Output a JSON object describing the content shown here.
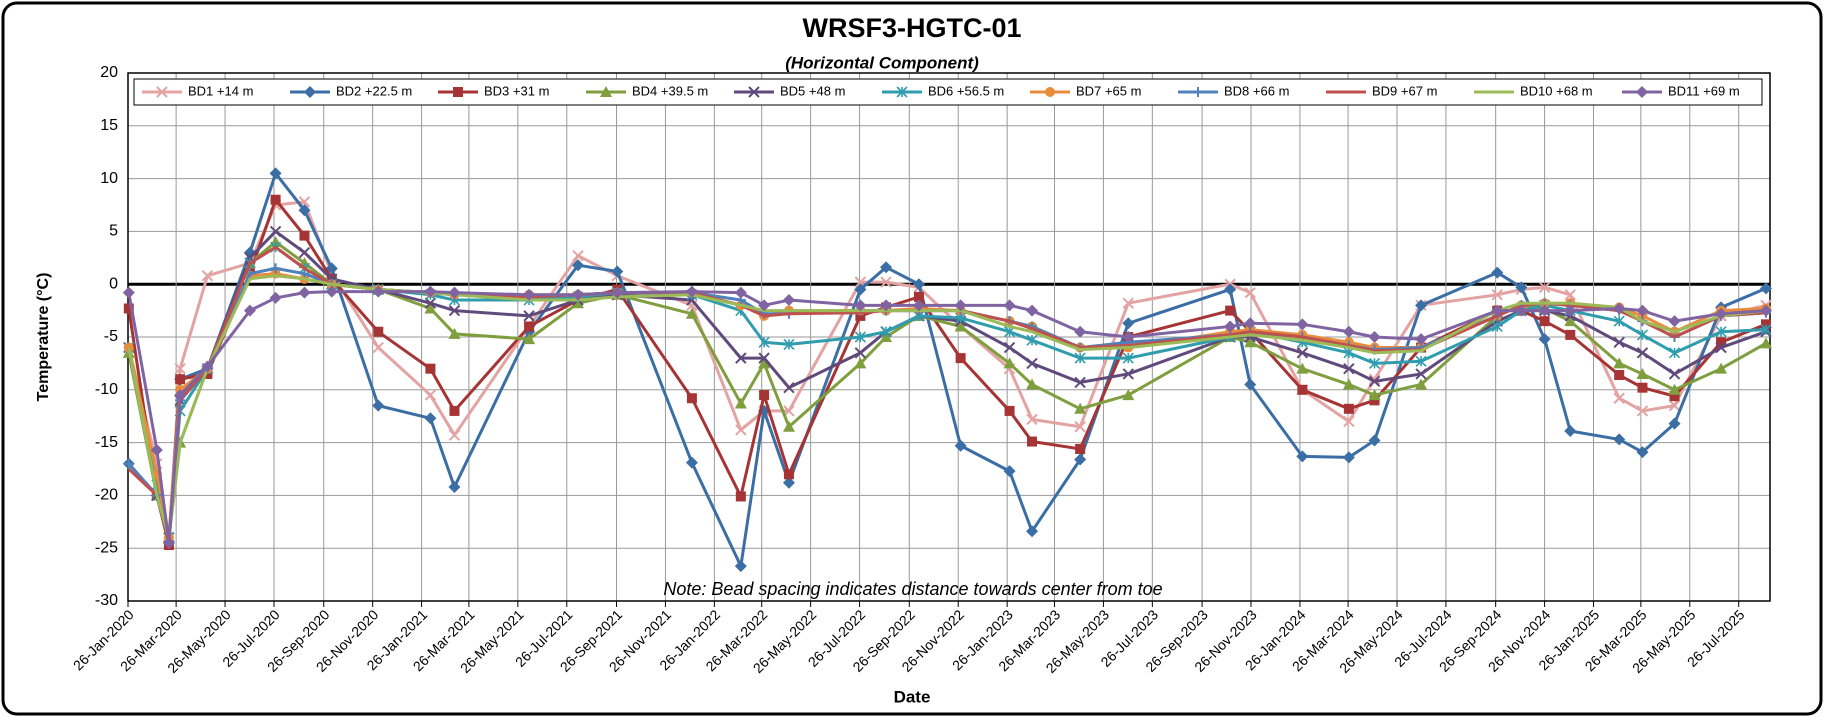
{
  "chart_data": {
    "type": "line",
    "title": "WRSF3-HGTC-01",
    "subtitle": "(Horizontal  Component)",
    "xlabel": "Date",
    "ylabel": "Temperature (°C)",
    "annotation": "Note: Bead spacing indicates distance towards center from toe",
    "xlim": [
      "2020-01-26",
      "2025-09-03"
    ],
    "xticks": [
      {
        "value": "2020-01-26",
        "label": "26-Jan-2020"
      },
      {
        "value": "2020-03-26",
        "label": "26-Mar-2020"
      },
      {
        "value": "2020-05-26",
        "label": "26-May-2020"
      },
      {
        "value": "2020-07-26",
        "label": "26-Jul-2020"
      },
      {
        "value": "2020-09-26",
        "label": "26-Sep-2020"
      },
      {
        "value": "2020-11-26",
        "label": "26-Nov-2020"
      },
      {
        "value": "2021-01-26",
        "label": "26-Jan-2021"
      },
      {
        "value": "2021-03-26",
        "label": "26-Mar-2021"
      },
      {
        "value": "2021-05-26",
        "label": "26-May-2021"
      },
      {
        "value": "2021-07-26",
        "label": "26-Jul-2021"
      },
      {
        "value": "2021-09-26",
        "label": "26-Sep-2021"
      },
      {
        "value": "2021-11-26",
        "label": "26-Nov-2021"
      },
      {
        "value": "2022-01-26",
        "label": "26-Jan-2022"
      },
      {
        "value": "2022-03-26",
        "label": "26-Mar-2022"
      },
      {
        "value": "2022-05-26",
        "label": "26-May-2022"
      },
      {
        "value": "2022-07-26",
        "label": "26-Jul-2022"
      },
      {
        "value": "2022-09-26",
        "label": "26-Sep-2022"
      },
      {
        "value": "2022-11-26",
        "label": "26-Nov-2022"
      },
      {
        "value": "2023-01-26",
        "label": "26-Jan-2023"
      },
      {
        "value": "2023-03-26",
        "label": "26-Mar-2023"
      },
      {
        "value": "2023-05-26",
        "label": "26-May-2023"
      },
      {
        "value": "2023-07-26",
        "label": "26-Jul-2023"
      },
      {
        "value": "2023-09-26",
        "label": "26-Sep-2023"
      },
      {
        "value": "2023-11-26",
        "label": "26-Nov-2023"
      },
      {
        "value": "2024-01-26",
        "label": "26-Jan-2024"
      },
      {
        "value": "2024-03-26",
        "label": "26-Mar-2024"
      },
      {
        "value": "2024-05-26",
        "label": "26-May-2024"
      },
      {
        "value": "2024-07-26",
        "label": "26-Jul-2024"
      },
      {
        "value": "2024-09-26",
        "label": "26-Sep-2024"
      },
      {
        "value": "2024-11-26",
        "label": "26-Nov-2024"
      },
      {
        "value": "2025-01-26",
        "label": "26-Jan-2025"
      },
      {
        "value": "2025-03-26",
        "label": "26-Mar-2025"
      },
      {
        "value": "2025-05-26",
        "label": "26-May-2025"
      },
      {
        "value": "2025-07-26",
        "label": "26-Jul-2025"
      }
    ],
    "ylim": [
      -30,
      20
    ],
    "yticks": [
      -30,
      -25,
      -20,
      -15,
      -10,
      -5,
      0,
      5,
      10,
      15,
      20
    ],
    "grid": true,
    "x": [
      "2020-01-27",
      "2020-03-02",
      "2020-03-17",
      "2020-03-31",
      "2020-05-04",
      "2020-06-26",
      "2020-07-28",
      "2020-09-02",
      "2020-10-06",
      "2020-12-03",
      "2021-02-06",
      "2021-03-08",
      "2021-06-09",
      "2021-08-09",
      "2021-09-27",
      "2021-12-29",
      "2022-02-28",
      "2022-03-29",
      "2022-04-29",
      "2022-07-27",
      "2022-08-28",
      "2022-10-08",
      "2022-11-29",
      "2023-01-29",
      "2023-02-26",
      "2023-04-27",
      "2023-06-26",
      "2023-10-31",
      "2023-11-25",
      "2024-01-29",
      "2024-03-27",
      "2024-04-28",
      "2024-06-25",
      "2024-09-28",
      "2024-10-28",
      "2024-11-26",
      "2024-12-28",
      "2025-02-27",
      "2025-03-28",
      "2025-05-07",
      "2025-07-04",
      "2025-08-29"
    ],
    "series": [
      {
        "name": "BD1 +14 m",
        "color": "#e3a3a3",
        "marker": "x",
        "values": [
          -6,
          -17,
          -24,
          -8,
          0.8,
          2,
          7.5,
          7.8,
          1,
          -6,
          -10.5,
          -14.3,
          -4,
          2.7,
          0.8,
          -2,
          -13.8,
          -12,
          -12,
          0.2,
          0.2,
          -0.3,
          -4,
          -8,
          -12.8,
          -13.5,
          -1.8,
          0,
          -0.8,
          -10,
          -13,
          -9,
          -2,
          -1,
          -0.5,
          -0.3,
          -1,
          -10.8,
          -12,
          -11.5,
          -3,
          -2
        ]
      },
      {
        "name": "BD2 +22.5 m",
        "color": "#3a6ea5",
        "marker": "diamond",
        "values": [
          -17,
          -20,
          -24.5,
          -9,
          -8,
          3,
          10.5,
          7,
          1.5,
          -11.5,
          -12.7,
          -19.2,
          -4.5,
          1.8,
          1.2,
          -16.9,
          -26.7,
          -12,
          -18.8,
          -0.5,
          1.6,
          0,
          -15.3,
          -17.7,
          -23.4,
          -16.6,
          -3.7,
          -0.5,
          -9.5,
          -16.3,
          -16.4,
          -14.8,
          -2,
          1.1,
          -0.3,
          -5.2,
          -13.9,
          -14.7,
          -15.9,
          -13.2,
          -2.2,
          -0.4
        ]
      },
      {
        "name": "BD3 +31 m",
        "color": "#a63434",
        "marker": "square",
        "values": [
          -2.3,
          -20,
          -24.7,
          -9,
          -8.5,
          1,
          8,
          4.6,
          0.5,
          -4.5,
          -8,
          -12,
          -4,
          -1.5,
          -0.5,
          -10.8,
          -20.1,
          -10.5,
          -18,
          -3,
          -2.2,
          -1.2,
          -7,
          -12,
          -14.9,
          -15.6,
          -5,
          -2.5,
          -4.5,
          -10,
          -11.8,
          -11,
          -6,
          -2.5,
          -2.5,
          -3.5,
          -4.8,
          -8.6,
          -9.8,
          -10.6,
          -5.5,
          -3.8
        ]
      },
      {
        "name": "BD4 +39.5 m",
        "color": "#7f9e3e",
        "marker": "triangle",
        "values": [
          -6.5,
          -20,
          -24,
          -15,
          -8,
          2,
          4,
          2,
          0,
          -0.5,
          -2.3,
          -4.7,
          -5.2,
          -1.8,
          -1,
          -2.8,
          -11.3,
          -7.5,
          -13.5,
          -7.5,
          -5,
          -3,
          -4,
          -7.5,
          -9.5,
          -11.8,
          -10.5,
          -5,
          -5.5,
          -8,
          -9.5,
          -10.5,
          -9.5,
          -3,
          -2,
          -2.3,
          -3.5,
          -7.5,
          -8.5,
          -10,
          -8,
          -5.6
        ]
      },
      {
        "name": "BD5 +48 m",
        "color": "#604a7b",
        "marker": "x",
        "values": [
          -6,
          -20,
          -24,
          -11,
          -8,
          2.5,
          5,
          3,
          0.5,
          -0.5,
          -1.8,
          -2.5,
          -3,
          -1.5,
          -1,
          -1.5,
          -7,
          -7,
          -9.8,
          -6.5,
          -4.5,
          -3,
          -3.5,
          -6,
          -7.5,
          -9.3,
          -8.5,
          -5,
          -5,
          -6.5,
          -8,
          -9.2,
          -8.5,
          -3.5,
          -2.5,
          -2.5,
          -3,
          -5.5,
          -6.5,
          -8.5,
          -6,
          -4.5
        ]
      },
      {
        "name": "BD6 +56.5 m",
        "color": "#2f9dad",
        "marker": "asterisk",
        "values": [
          -6,
          -19,
          -24,
          -12,
          -8,
          2,
          3.5,
          1.5,
          0,
          -0.5,
          -1,
          -1.5,
          -1.5,
          -1.2,
          -0.8,
          -1,
          -2.5,
          -5.5,
          -5.7,
          -5,
          -4.5,
          -3,
          -3.2,
          -4.5,
          -5.3,
          -7,
          -7,
          -5,
          -4.5,
          -5.5,
          -6.5,
          -7.5,
          -7.3,
          -4,
          -2.5,
          -2,
          -2.5,
          -3.5,
          -4.8,
          -6.5,
          -4.5,
          -4.3
        ]
      },
      {
        "name": "BD7 +65 m",
        "color": "#e98b3a",
        "marker": "circle",
        "values": [
          -6,
          -18,
          -24,
          -10,
          -8,
          0.8,
          1,
          0.5,
          0,
          -0.5,
          -0.8,
          -1,
          -1,
          -1,
          -0.8,
          -0.8,
          -2,
          -3,
          -2.5,
          -2.5,
          -2.5,
          -2.3,
          -2.5,
          -3.5,
          -4,
          -6,
          -6,
          -4.5,
          -4.3,
          -4.8,
          -5.5,
          -6,
          -6,
          -3,
          -2,
          -1.8,
          -1.8,
          -2.2,
          -3,
          -4.5,
          -2.5,
          -2.3
        ]
      },
      {
        "name": "BD8 +66 m",
        "color": "#4f81bd",
        "marker": "plus",
        "values": [
          -17,
          -20,
          -24.5,
          -11,
          -8,
          1,
          1.5,
          1,
          0,
          -0.5,
          -0.8,
          -1,
          -1.2,
          -1,
          -0.8,
          -0.8,
          -1.5,
          -2.8,
          -2.8,
          -2.5,
          -2.5,
          -2.5,
          -2.5,
          -3.5,
          -4,
          -6,
          -5.5,
          -4.8,
          -4.5,
          -5,
          -5.8,
          -6.2,
          -6,
          -3,
          -2,
          -1.8,
          -2,
          -2.5,
          -3.5,
          -5,
          -3,
          -2.7
        ]
      },
      {
        "name": "BD9 +67 m",
        "color": "#c0504d",
        "marker": "none",
        "values": [
          -17.5,
          -20,
          -24.5,
          -11,
          -8,
          2,
          3.5,
          1.5,
          0,
          -0.5,
          -0.8,
          -1,
          -1.2,
          -1,
          -0.8,
          -0.8,
          -2,
          -3,
          -2.8,
          -2.7,
          -2.5,
          -2.5,
          -2.5,
          -3.5,
          -4.2,
          -6,
          -5.8,
          -4.8,
          -4.5,
          -5,
          -5.8,
          -6.3,
          -6.2,
          -3,
          -2,
          -1.8,
          -2,
          -2.5,
          -3.5,
          -5,
          -3,
          -2.7
        ]
      },
      {
        "name": "BD10 +68 m",
        "color": "#9bbb59",
        "marker": "none",
        "values": [
          -6,
          -20,
          -24,
          -15,
          -8,
          0.5,
          0.8,
          0.5,
          0,
          -0.5,
          -0.8,
          -1,
          -1.5,
          -1.5,
          -1.2,
          -1,
          -2,
          -2.5,
          -2.5,
          -2.5,
          -2.5,
          -2.5,
          -2.5,
          -4,
          -4.5,
          -6.2,
          -6,
          -5,
          -4.8,
          -5.3,
          -6,
          -6.5,
          -6.3,
          -2.5,
          -1.8,
          -1.8,
          -1.8,
          -2.2,
          -3.5,
          -4.5,
          -3,
          -2.5
        ]
      },
      {
        "name": "BD11 +69 m",
        "color": "#8064a2",
        "marker": "diamond",
        "values": [
          -0.8,
          -15.7,
          -24.5,
          -10.5,
          -7.8,
          -2.5,
          -1.3,
          -0.8,
          -0.7,
          -0.7,
          -0.7,
          -0.8,
          -1,
          -1,
          -0.8,
          -0.7,
          -0.8,
          -2,
          -1.5,
          -2,
          -2,
          -2,
          -2,
          -2,
          -2.5,
          -4.5,
          -5,
          -4,
          -3.7,
          -3.8,
          -4.5,
          -5,
          -5.2,
          -2.5,
          -2.5,
          -2.5,
          -2.5,
          -2.3,
          -2.5,
          -3.5,
          -2.8,
          -2.5
        ]
      }
    ]
  }
}
